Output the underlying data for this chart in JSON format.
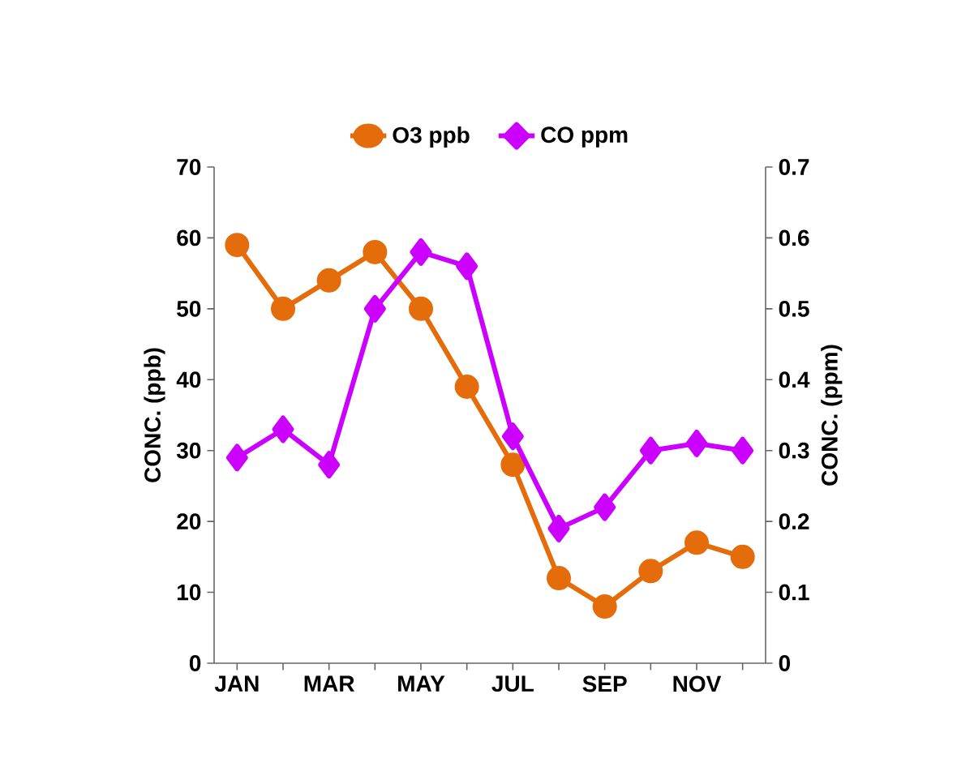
{
  "chart_data": {
    "type": "line",
    "ylabel": "CONC. (ppb)",
    "y2label": "CONC. (ppm)",
    "categories": [
      "JAN",
      null,
      "MAR",
      null,
      "MAY",
      null,
      "JUL",
      null,
      "SEP",
      null,
      "NOV",
      null
    ],
    "series": [
      {
        "name": "O3 ppb",
        "color": "#e46c0a",
        "marker": "circle",
        "values": [
          59,
          50,
          54,
          58,
          50,
          39,
          28,
          12,
          8,
          13,
          17,
          15
        ]
      },
      {
        "name": "CO ppm",
        "color": "#cc00ff",
        "marker": "diamond",
        "axis": "y2",
        "values": [
          0.29,
          0.33,
          0.28,
          0.5,
          0.58,
          0.56,
          0.32,
          0.19,
          0.22,
          0.3,
          0.31,
          0.3
        ]
      }
    ],
    "ylim": [
      0,
      70
    ],
    "yticks": [
      0,
      10,
      20,
      30,
      40,
      50,
      60,
      70
    ],
    "y2lim": [
      0,
      0.7
    ],
    "y2ticks": [
      0,
      0.1,
      0.2,
      0.3,
      0.4,
      0.5,
      0.6,
      0.7
    ],
    "legend": "top",
    "grid": false
  }
}
